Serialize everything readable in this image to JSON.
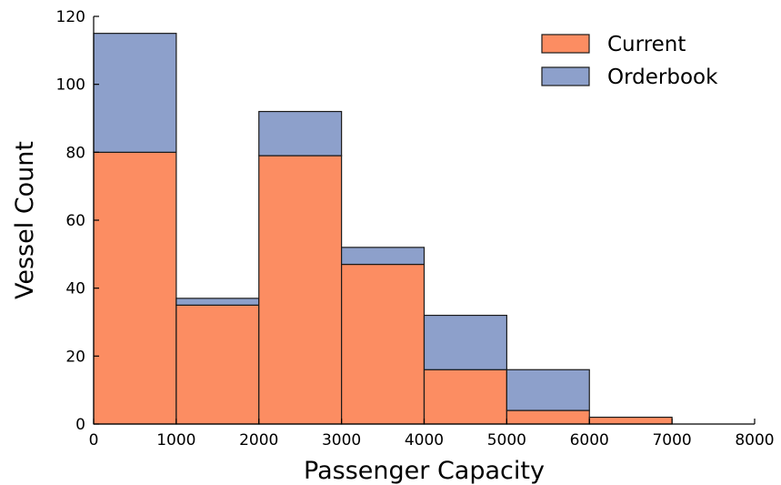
{
  "chart_data": {
    "type": "bar",
    "stacked": true,
    "histogram": true,
    "bins": [
      [
        0,
        1000
      ],
      [
        1000,
        2000
      ],
      [
        2000,
        3000
      ],
      [
        3000,
        4000
      ],
      [
        4000,
        5000
      ],
      [
        5000,
        6000
      ],
      [
        6000,
        7000
      ],
      [
        7000,
        8000
      ]
    ],
    "series": [
      {
        "name": "Current",
        "color": "#fc8d62",
        "values": [
          80,
          35,
          79,
          47,
          16,
          4,
          2,
          0
        ]
      },
      {
        "name": "Orderbook",
        "color": "#8da0cb",
        "values": [
          35,
          2,
          13,
          5,
          16,
          12,
          0,
          0
        ]
      }
    ],
    "xlabel": "Passenger Capacity",
    "ylabel": "Vessel Count",
    "xlim": [
      0,
      8000
    ],
    "ylim": [
      0,
      120
    ],
    "xticks": [
      "0",
      "1000",
      "2000",
      "3000",
      "4000",
      "5000",
      "6000",
      "7000",
      "8000"
    ],
    "yticks": [
      "0",
      "20",
      "40",
      "60",
      "80",
      "100",
      "120"
    ],
    "grid": false,
    "legend_position": "top-right"
  }
}
